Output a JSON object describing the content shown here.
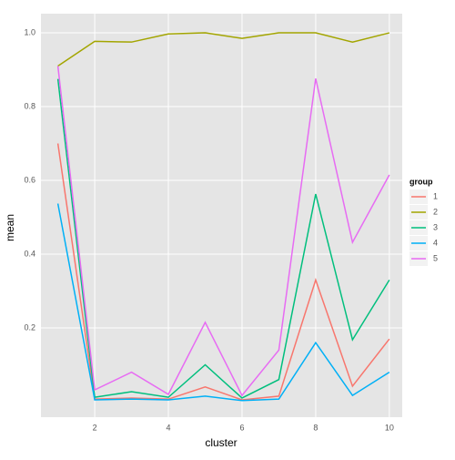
{
  "chart_data": {
    "type": "line",
    "x_label": "cluster",
    "y_label": "mean",
    "legend_title": "group",
    "x": [
      1,
      2,
      3,
      4,
      5,
      6,
      7,
      8,
      9,
      10
    ],
    "series": [
      {
        "name": "1",
        "color": "#F8766D",
        "values": [
          0.7,
          0.007,
          0.01,
          0.007,
          0.04,
          0.005,
          0.015,
          0.33,
          0.042,
          0.17
        ]
      },
      {
        "name": "2",
        "color": "#A3A500",
        "values": [
          0.91,
          0.977,
          0.975,
          0.997,
          1.0,
          0.985,
          1.0,
          1.0,
          0.975,
          1.0
        ]
      },
      {
        "name": "3",
        "color": "#00BF7D",
        "values": [
          0.875,
          0.012,
          0.027,
          0.012,
          0.1,
          0.01,
          0.06,
          0.563,
          0.168,
          0.33
        ]
      },
      {
        "name": "4",
        "color": "#00B0F6",
        "values": [
          0.537,
          0.005,
          0.007,
          0.005,
          0.015,
          0.003,
          0.007,
          0.16,
          0.017,
          0.08
        ]
      },
      {
        "name": "5",
        "color": "#E76BF3",
        "values": [
          0.91,
          0.032,
          0.08,
          0.02,
          0.215,
          0.017,
          0.14,
          0.876,
          0.432,
          0.615
        ]
      }
    ],
    "xlim": [
      0.54,
      10.35
    ],
    "xticks": [
      2,
      4,
      6,
      8,
      10
    ],
    "ylim": [
      -0.042,
      1.052
    ],
    "yticks": [
      0.2,
      0.4,
      0.6,
      0.8,
      {
        "value": 1,
        "label": "1.0"
      }
    ],
    "grid": true,
    "legend_position": "right"
  }
}
